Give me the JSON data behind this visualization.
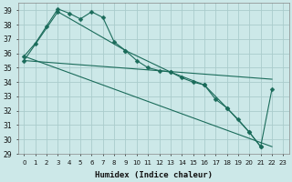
{
  "xlabel": "Humidex (Indice chaleur)",
  "background_color": "#cce8e8",
  "grid_color": "#aacccc",
  "line_color": "#1a6b5a",
  "xlim": [
    -0.5,
    23.5
  ],
  "ylim": [
    29,
    39.5
  ],
  "yticks": [
    29,
    30,
    31,
    32,
    33,
    34,
    35,
    36,
    37,
    38,
    39
  ],
  "xticks": [
    0,
    1,
    2,
    3,
    4,
    5,
    6,
    7,
    8,
    9,
    10,
    11,
    12,
    13,
    14,
    15,
    16,
    17,
    18,
    19,
    20,
    21,
    22,
    23
  ],
  "line1_x": [
    0,
    1,
    2,
    3,
    4,
    5,
    6,
    7,
    8,
    9,
    10,
    11,
    12,
    13,
    14,
    15,
    16,
    17,
    18,
    19,
    20,
    21
  ],
  "line1_y": [
    35.8,
    36.7,
    37.9,
    39.1,
    38.8,
    38.4,
    38.9,
    38.5,
    36.8,
    36.2,
    35.5,
    35.0,
    34.8,
    34.7,
    34.3,
    34.0,
    33.8,
    32.8,
    32.2,
    31.4,
    30.5,
    29.5
  ],
  "line2_x": [
    0,
    22
  ],
  "line2_y": [
    35.5,
    34.2
  ],
  "line3_x": [
    0,
    3,
    9,
    13,
    16,
    18,
    20,
    21,
    22
  ],
  "line3_y": [
    35.5,
    38.9,
    36.2,
    34.7,
    33.8,
    32.2,
    30.5,
    29.5,
    33.5
  ],
  "line4_x": [
    0,
    22
  ],
  "line4_y": [
    35.8,
    29.5
  ]
}
